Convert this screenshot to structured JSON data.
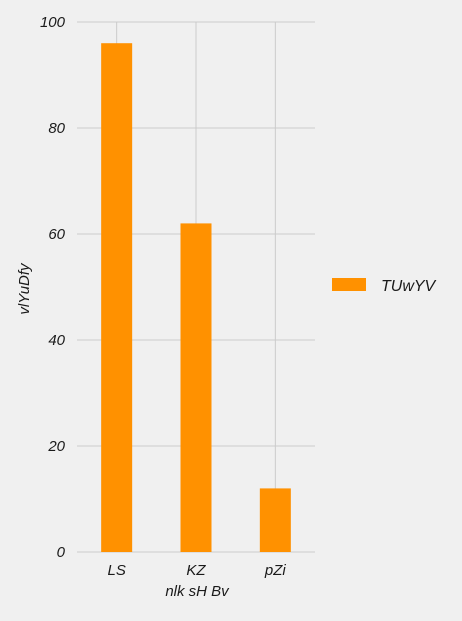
{
  "chart_data": {
    "type": "bar",
    "categories": [
      "LS",
      "KZ",
      "pZi"
    ],
    "series": [
      {
        "name": "TUwYV",
        "values": [
          96,
          62,
          12
        ],
        "color": "#ff9100"
      }
    ],
    "xlabel": "nlk sH Bv",
    "ylabel": "vlYuDfy",
    "ylim": [
      0,
      100
    ],
    "yticks": [
      0,
      20,
      40,
      60,
      80,
      100
    ],
    "grid": true,
    "legend_position": "right"
  }
}
